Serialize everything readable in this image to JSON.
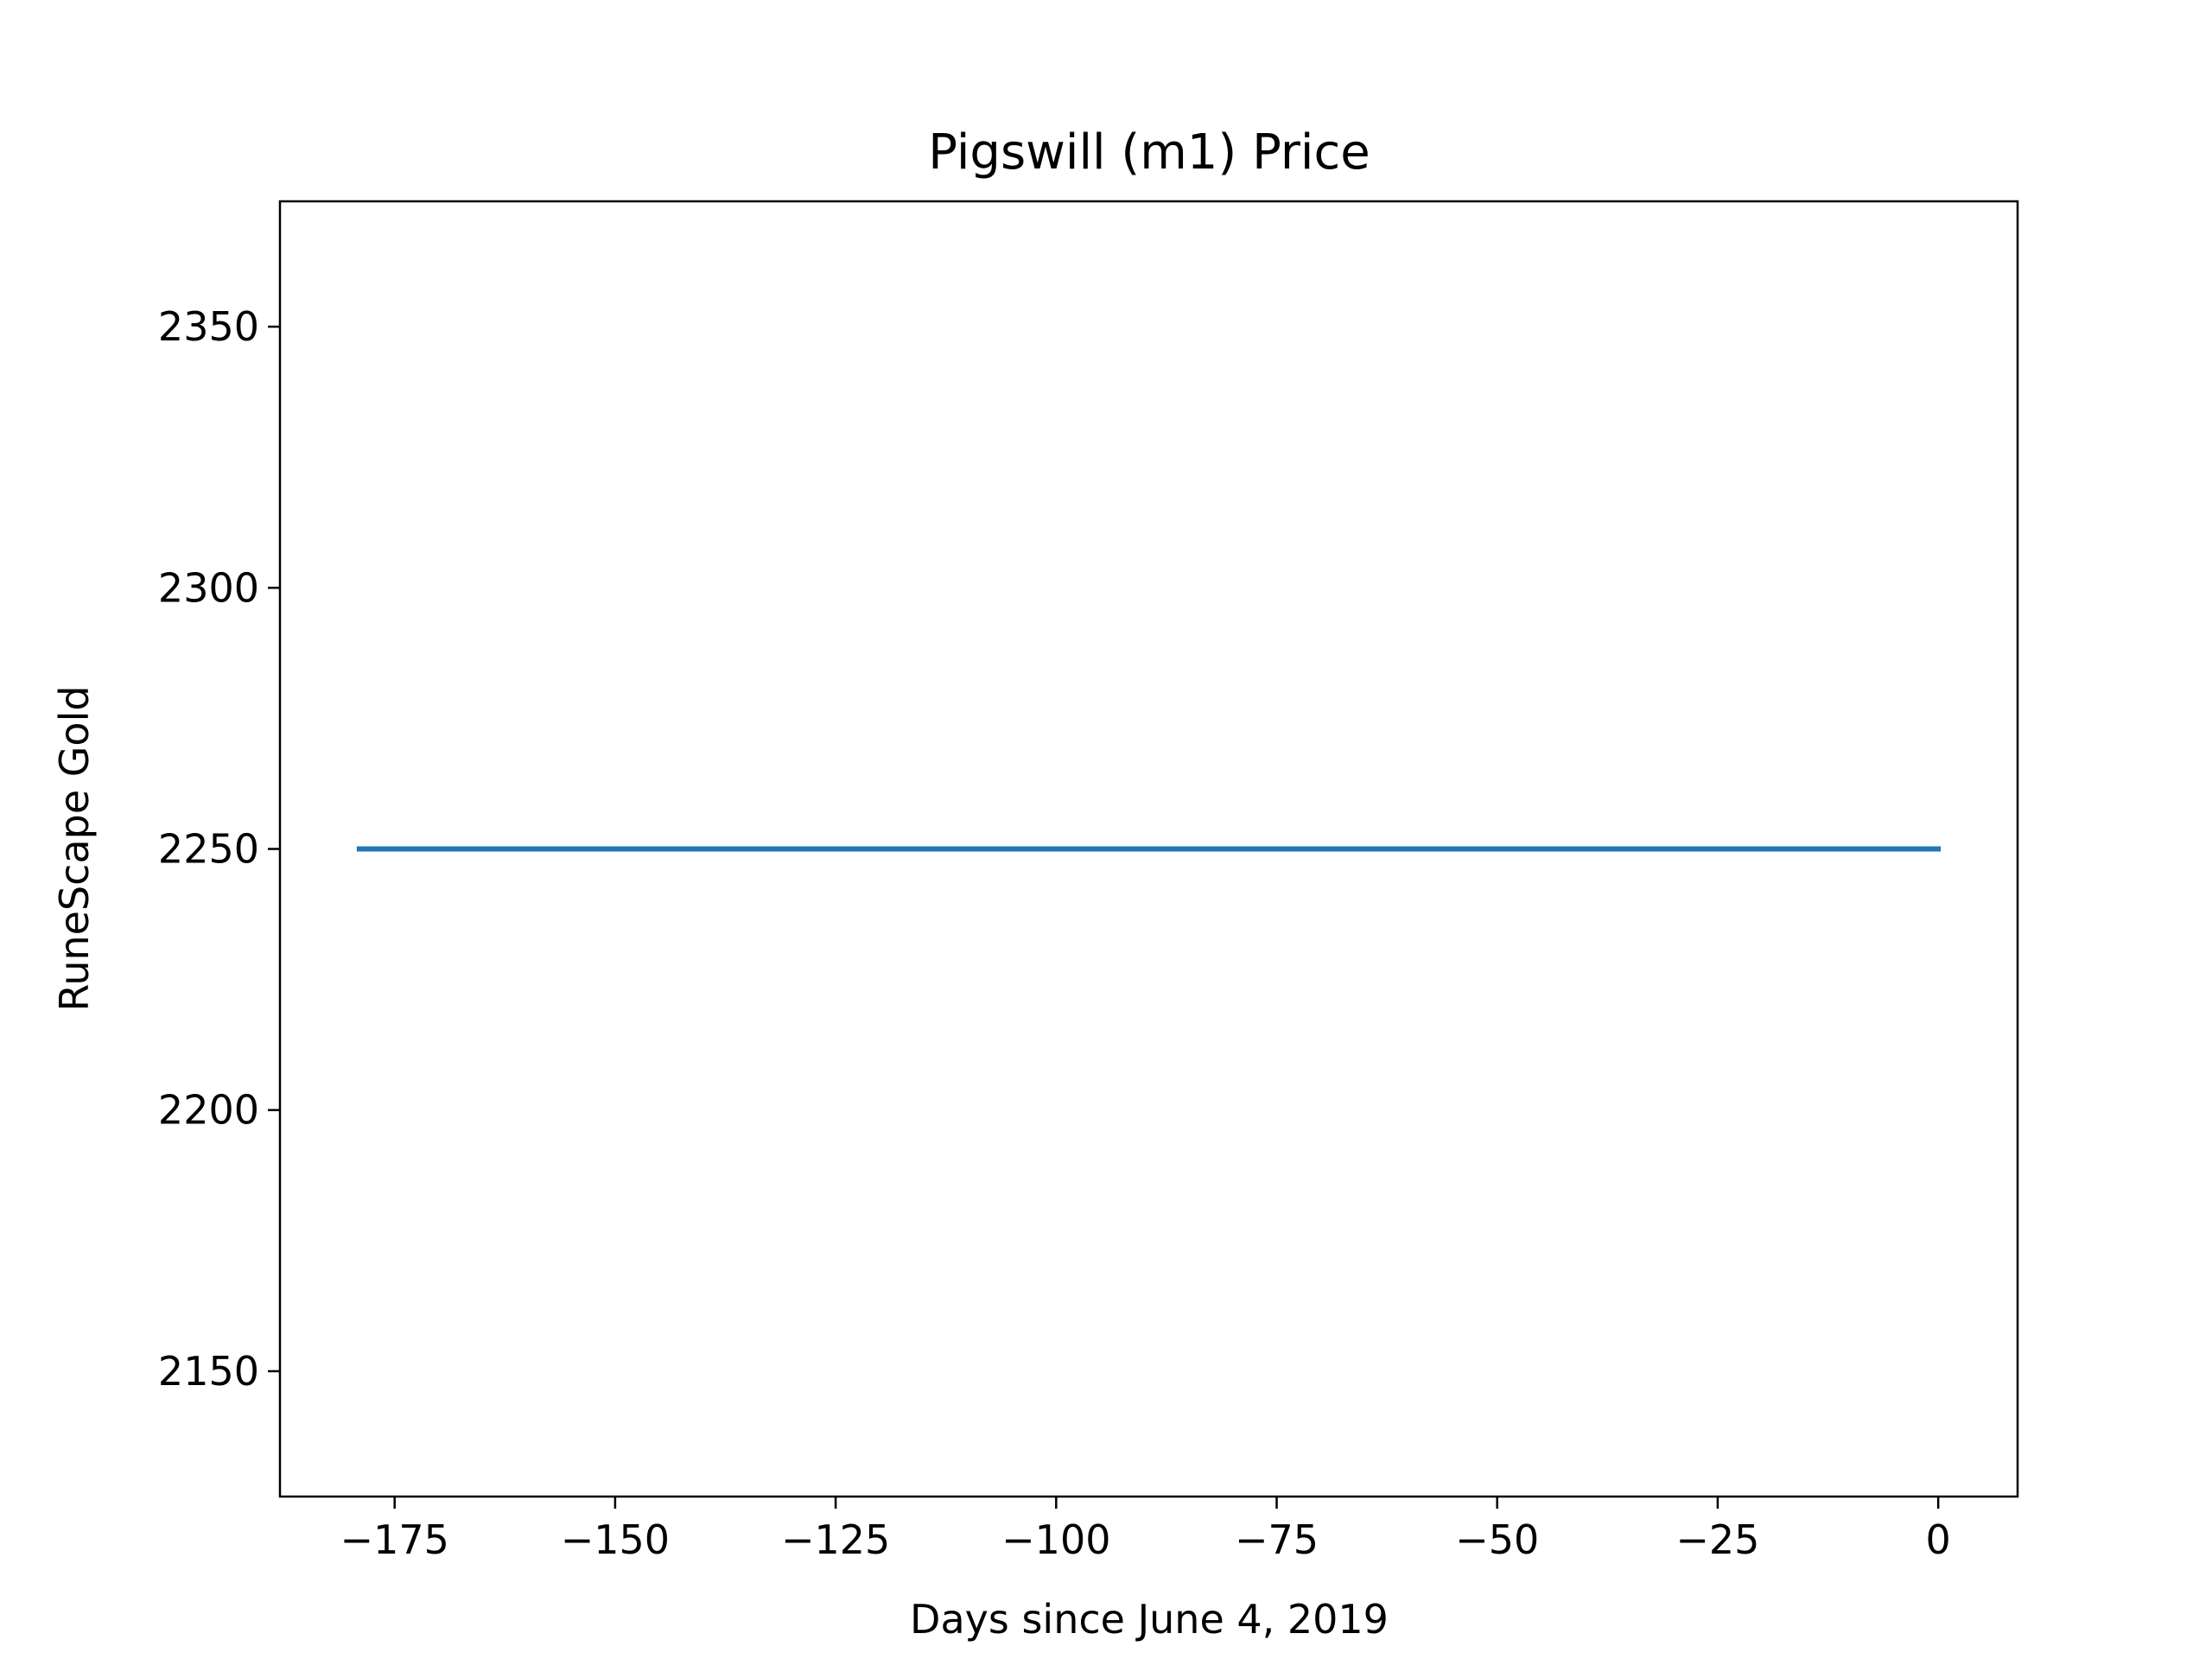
{
  "chart_data": {
    "type": "line",
    "title": "Pigswill (m1) Price",
    "xlabel": "Days since June 4, 2019",
    "ylabel": "RuneScape Gold",
    "xlim": [
      -188,
      9
    ],
    "ylim": [
      2126,
      2374
    ],
    "x_ticks": [
      -175,
      -150,
      -125,
      -100,
      -75,
      -50,
      -25,
      0
    ],
    "x_tick_labels": [
      "−175",
      "−150",
      "−125",
      "−100",
      "−75",
      "−50",
      "−25",
      "0"
    ],
    "y_ticks": [
      2150,
      2200,
      2250,
      2300,
      2350
    ],
    "y_tick_labels": [
      "2150",
      "2200",
      "2250",
      "2300",
      "2350"
    ],
    "grid": false,
    "series": [
      {
        "color": "#1f77b4",
        "x": [
          -179,
          0
        ],
        "y": [
          2250,
          2250
        ]
      }
    ]
  }
}
